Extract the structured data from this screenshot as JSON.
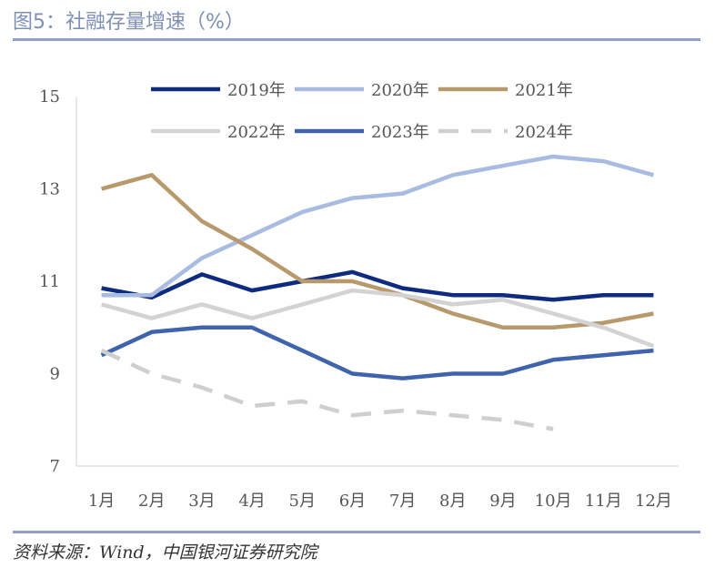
{
  "header": {
    "title": "图5：社融存量增速（%）"
  },
  "footer": {
    "source": "资料来源：Wind，中国银河证券研究院"
  },
  "chart_data": {
    "type": "line",
    "title": "图5：社融存量增速（%）",
    "xlabel": "",
    "ylabel": "",
    "categories": [
      "1月",
      "2月",
      "3月",
      "4月",
      "5月",
      "6月",
      "7月",
      "8月",
      "9月",
      "10月",
      "11月",
      "12月"
    ],
    "ylim": [
      7,
      15
    ],
    "yticks": [
      7,
      9,
      11,
      13,
      15
    ],
    "grid": false,
    "legend": "top",
    "series": [
      {
        "name": "2019年",
        "color": "#0e2b7f",
        "dashed": false,
        "values": [
          10.85,
          10.65,
          11.15,
          10.8,
          11.0,
          11.2,
          10.85,
          10.7,
          10.7,
          10.6,
          10.7,
          10.7
        ]
      },
      {
        "name": "2020年",
        "color": "#a8bbe0",
        "dashed": false,
        "values": [
          10.7,
          10.7,
          11.5,
          12.0,
          12.5,
          12.8,
          12.9,
          13.3,
          13.5,
          13.7,
          13.6,
          13.3
        ]
      },
      {
        "name": "2021年",
        "color": "#b8996c",
        "dashed": false,
        "values": [
          13.0,
          13.3,
          12.3,
          11.7,
          11.0,
          11.0,
          10.7,
          10.3,
          10.0,
          10.0,
          10.1,
          10.3
        ]
      },
      {
        "name": "2022年",
        "color": "#d3d3d3",
        "dashed": false,
        "values": [
          10.5,
          10.2,
          10.5,
          10.2,
          10.5,
          10.8,
          10.7,
          10.5,
          10.6,
          10.3,
          10.0,
          9.6
        ]
      },
      {
        "name": "2023年",
        "color": "#3f64ad",
        "dashed": false,
        "values": [
          9.4,
          9.9,
          10.0,
          10.0,
          9.5,
          9.0,
          8.9,
          9.0,
          9.0,
          9.3,
          9.4,
          9.5
        ]
      },
      {
        "name": "2024年",
        "color": "#cfcfcf",
        "dashed": true,
        "values": [
          9.5,
          9.0,
          8.7,
          8.3,
          8.4,
          8.1,
          8.2,
          8.1,
          8.0,
          7.8,
          null,
          null
        ]
      }
    ]
  }
}
